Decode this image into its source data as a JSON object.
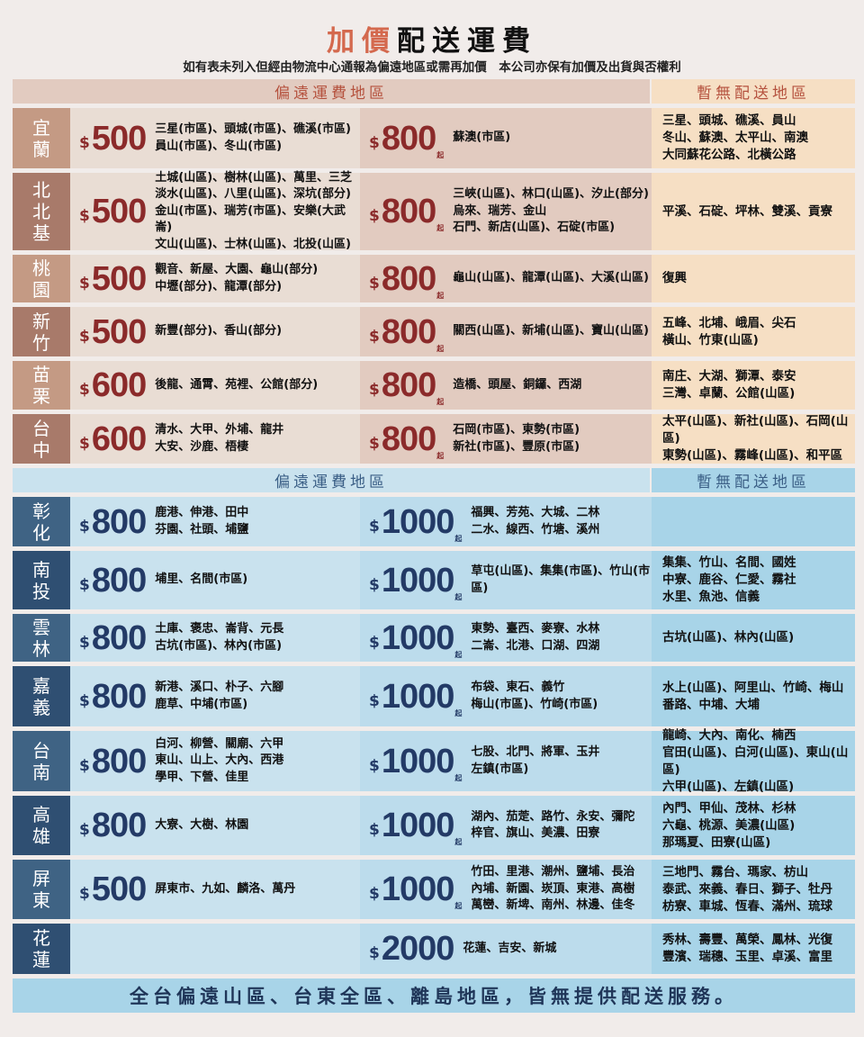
{
  "title": {
    "accent": "加價",
    "rest": "配送運費"
  },
  "subtitle": "如有表未列入但經由物流中心通報為偏遠地區或需再加價　本公司亦保有加價及出貨與否權利",
  "warm_header": {
    "remote": "偏遠運費地區",
    "none": "暫無配送地區"
  },
  "blue_header": {
    "remote": "偏遠運費地區",
    "none": "暫無配送地區"
  },
  "colors": {
    "price_warm": "#8b2a2a",
    "price_blue": "#233a66",
    "accent": "#d4694e"
  },
  "currency": "$",
  "qi": "起",
  "warm_rows": [
    {
      "region": "宜蘭",
      "p1": "500",
      "l1": [
        "三星(市區)、頭城(市區)、礁溪(市區)",
        "員山(市區)、冬山(市區)"
      ],
      "p2": "800",
      "l2": [
        "蘇澳(市區)"
      ],
      "none": [
        "三星、頭城、礁溪、員山",
        "冬山、蘇澳、太平山、南澳",
        "大同蘇花公路、北橫公路"
      ]
    },
    {
      "region": "北北基",
      "p1": "500",
      "l1": [
        "土城(山區)、樹林(山區)、萬里、三芝",
        "淡水(山區)、八里(山區)、深坑(部分)",
        "金山(市區)、瑞芳(市區)、安樂(大武崙)",
        "文山(山區)、士林(山區)、北投(山區)"
      ],
      "p2": "800",
      "l2": [
        "三峽(山區)、林口(山區)、汐止(部分)",
        "烏來、瑞芳、金山",
        "石門、新店(山區)、石碇(市區)"
      ],
      "none": [
        "平溪、石碇、坪林、雙溪、貢寮"
      ]
    },
    {
      "region": "桃園",
      "p1": "500",
      "l1": [
        "觀音、新屋、大園、龜山(部分)",
        "中壢(部分)、龍潭(部分)"
      ],
      "p2": "800",
      "l2": [
        "龜山(山區)、龍潭(山區)、大溪(山區)"
      ],
      "none": [
        "復興"
      ]
    },
    {
      "region": "新竹",
      "p1": "500",
      "l1": [
        "新豐(部分)、香山(部分)"
      ],
      "p2": "800",
      "l2": [
        "關西(山區)、新埔(山區)、寶山(山區)"
      ],
      "none": [
        "五峰、北埔、峨眉、尖石",
        "橫山、竹東(山區)"
      ]
    },
    {
      "region": "苗栗",
      "p1": "600",
      "l1": [
        "後龍、通霄、苑裡、公館(部分)"
      ],
      "p2": "800",
      "l2": [
        "造橋、頭屋、銅鑼、西湖"
      ],
      "none": [
        "南庄、大湖、獅潭、泰安",
        "三灣、卓蘭、公館(山區)"
      ]
    },
    {
      "region": "台中",
      "p1": "600",
      "l1": [
        "清水、大甲、外埔、龍井",
        "大安、沙鹿、梧棲"
      ],
      "p2": "800",
      "l2": [
        "石岡(市區)、東勢(市區)",
        "新社(市區)、豐原(市區)"
      ],
      "none": [
        "太平(山區)、新社(山區)、石岡(山區)",
        "東勢(山區)、霧峰(山區)、和平區"
      ]
    }
  ],
  "blue_rows": [
    {
      "region": "彰化",
      "p1": "800",
      "l1": [
        "鹿港、伸港、田中",
        "芬園、社頭、埔鹽"
      ],
      "p2": "1000",
      "l2": [
        "福興、芳苑、大城、二林",
        "二水、線西、竹塘、溪州"
      ],
      "none": []
    },
    {
      "region": "南投",
      "p1": "800",
      "l1": [
        "埔里、名間(市區)"
      ],
      "p2": "1000",
      "l2": [
        "草屯(山區)、集集(市區)、竹山(市區)"
      ],
      "none": [
        "集集、竹山、名間、國姓",
        "中寮、鹿谷、仁愛、霧社",
        "水里、魚池、信義"
      ]
    },
    {
      "region": "雲林",
      "p1": "800",
      "l1": [
        "土庫、褒忠、崙背、元長",
        "古坑(市區)、林內(市區)"
      ],
      "p2": "1000",
      "l2": [
        "東勢、臺西、麥寮、水林",
        "二崙、北港、口湖、四湖"
      ],
      "none": [
        "古坑(山區)、林內(山區)"
      ]
    },
    {
      "region": "嘉義",
      "p1": "800",
      "l1": [
        "新港、溪口、朴子、六腳",
        "鹿草、中埔(市區)"
      ],
      "p2": "1000",
      "l2": [
        "布袋、東石、義竹",
        "梅山(市區)、竹崎(市區)"
      ],
      "none": [
        "水上(山區)、阿里山、竹崎、梅山",
        "番路、中埔、大埔"
      ]
    },
    {
      "region": "台南",
      "p1": "800",
      "l1": [
        "白河、柳營、關廟、六甲",
        "東山、山上、大內、西港",
        "學甲、下營、佳里"
      ],
      "p2": "1000",
      "l2": [
        "七股、北門、將軍、玉井",
        "左鎮(市區)"
      ],
      "none": [
        "龍崎、大內、南化、楠西",
        "官田(山區)、白河(山區)、東山(山區)",
        "六甲(山區)、左鎮(山區)"
      ]
    },
    {
      "region": "高雄",
      "p1": "800",
      "l1": [
        "大寮、大樹、林園"
      ],
      "p2": "1000",
      "l2": [
        "湖內、茄萣、路竹、永安、彌陀",
        "梓官、旗山、美濃、田寮"
      ],
      "none": [
        "內門、甲仙、茂林、杉林",
        "六龜、桃源、美濃(山區)",
        "那瑪夏、田寮(山區)"
      ]
    },
    {
      "region": "屏東",
      "p1": "500",
      "l1": [
        "屏東市、九如、麟洛、萬丹"
      ],
      "p2": "1000",
      "l2": [
        "竹田、里港、潮州、鹽埔、長治",
        "內埔、新園、崁頂、東港、高樹",
        "萬巒、新埤、南州、林邊、佳冬"
      ],
      "none": [
        "三地門、霧台、瑪家、枋山",
        "泰武、來義、春日、獅子、牡丹",
        "枋寮、車城、恆春、滿州、琉球"
      ]
    },
    {
      "region": "花蓮",
      "p1": "",
      "l1": [],
      "p2": "2000",
      "p2_no_qi": true,
      "l2": [
        "花蓮、吉安、新城"
      ],
      "none": [
        "秀林、壽豐、萬榮、鳳林、光復",
        "豐濱、瑞穗、玉里、卓溪、富里"
      ]
    }
  ],
  "footer": "全台偏遠山區、台東全區、離島地區，皆無提供配送服務。"
}
